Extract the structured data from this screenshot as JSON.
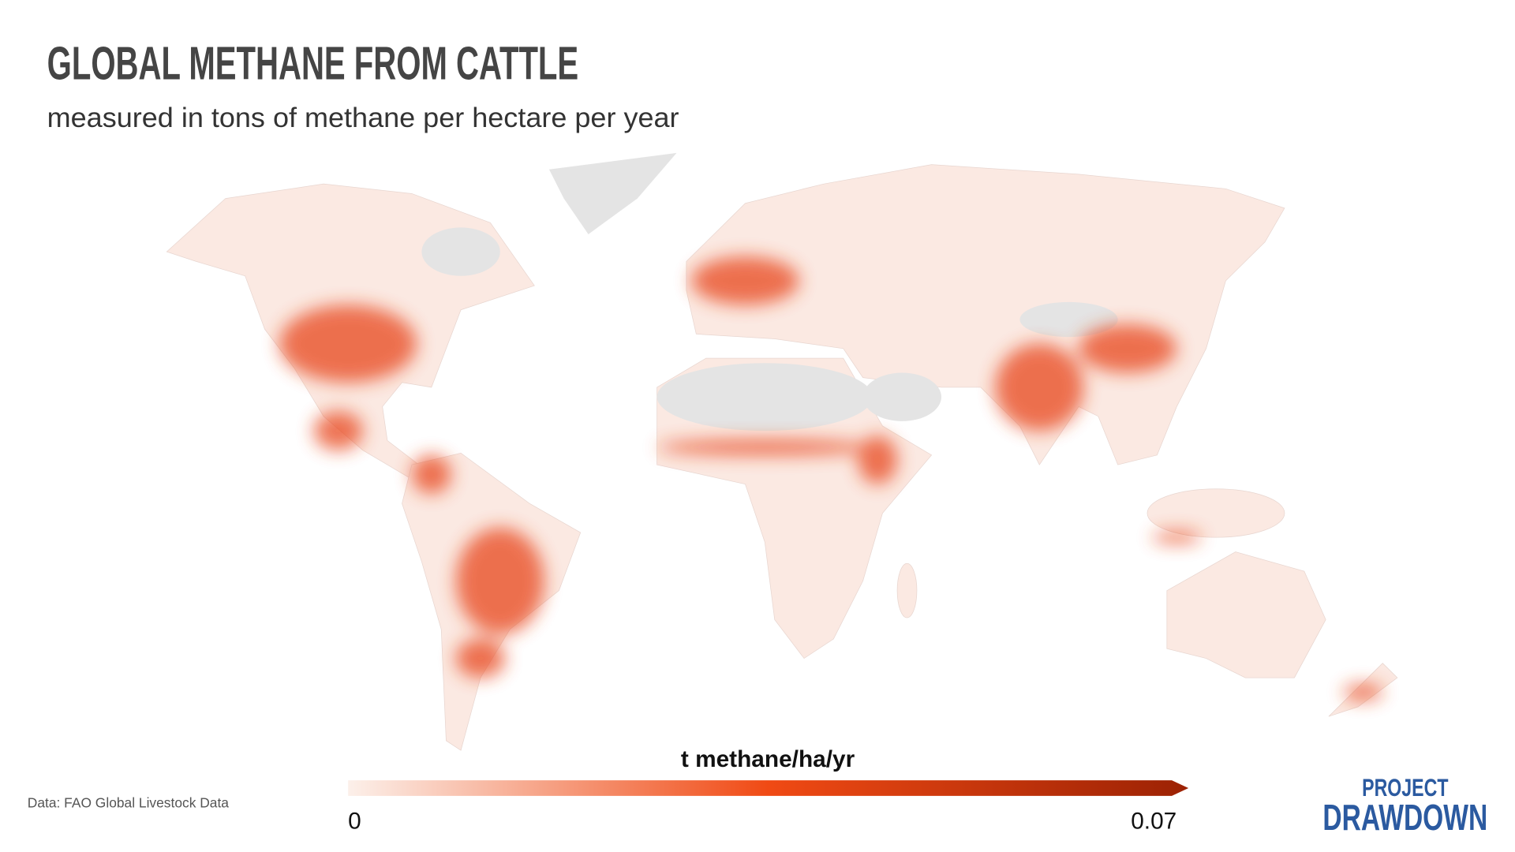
{
  "title": "GLOBAL METHANE FROM CATTLE",
  "subtitle": "measured in tons of methane per hectare per year",
  "legend": {
    "title": "t methane/ha/yr",
    "range": [
      0,
      0.07
    ],
    "ticks": [
      0,
      0.07
    ],
    "colors": [
      "#fcf0ea",
      "#f04a14",
      "#9c2204"
    ]
  },
  "source": "Data: FAO Global Livestock Data",
  "logo": {
    "line1": "PROJECT",
    "line2": "DRAWDOWN"
  }
}
